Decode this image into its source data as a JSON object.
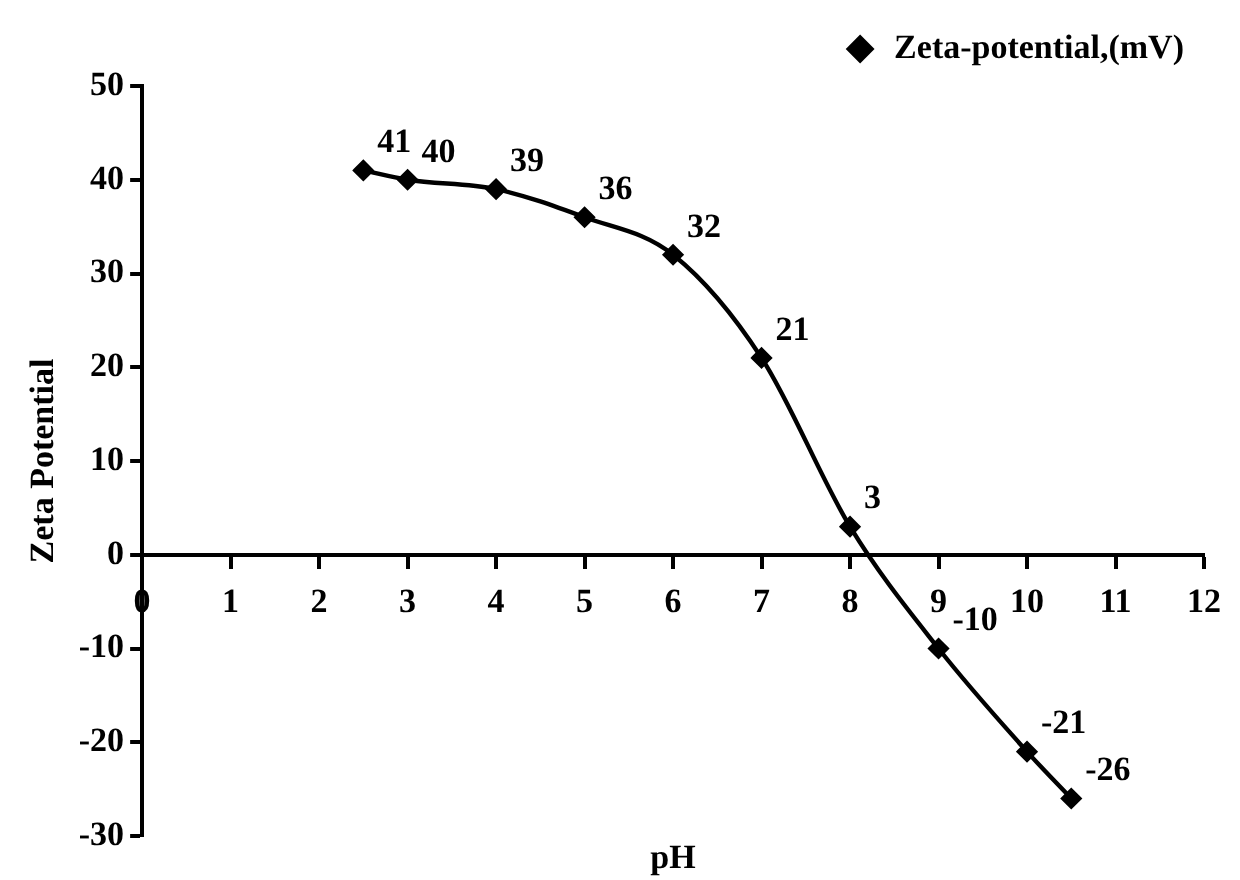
{
  "chart_data": {
    "type": "line",
    "xlabel": "pH",
    "ylabel": "Zeta Potential",
    "x": [
      2.5,
      3,
      4,
      5,
      6,
      7,
      8,
      9,
      10,
      10.5
    ],
    "series": [
      {
        "name": "Zeta-potential,(mV)",
        "color": "#000000",
        "values": [
          41,
          40,
          39,
          36,
          32,
          21,
          3,
          -10,
          -21,
          -26
        ]
      }
    ],
    "xlim": [
      0,
      12
    ],
    "xticks": [
      0,
      1,
      2,
      3,
      4,
      5,
      6,
      7,
      8,
      9,
      10,
      11,
      12
    ],
    "ylim": [
      -30,
      50
    ],
    "yticks": [
      -30,
      -20,
      -10,
      0,
      10,
      20,
      30,
      40,
      50
    ],
    "grid": false,
    "legend": "top right",
    "marker": "diamond",
    "line_style": "solid",
    "data_labels": true
  }
}
